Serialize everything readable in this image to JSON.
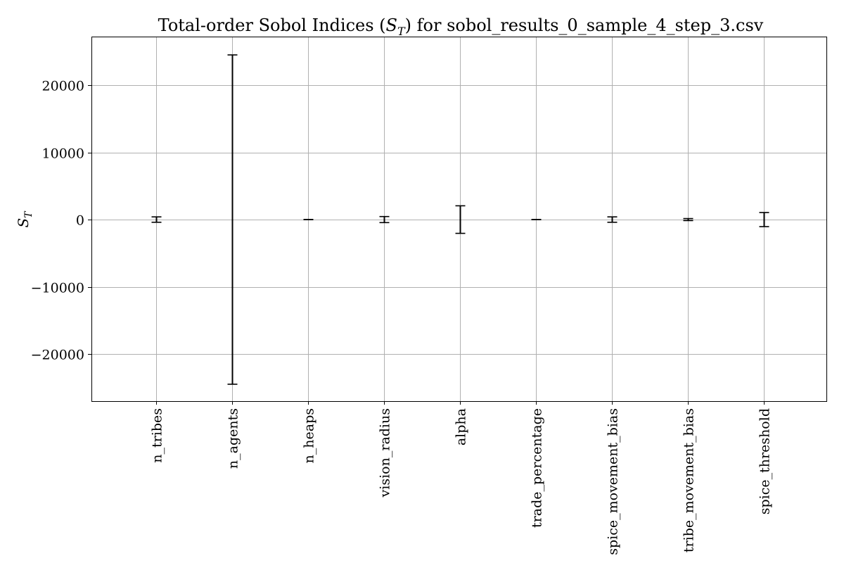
{
  "chart_data": {
    "type": "errorbar",
    "title": "Total-order Sobol Indices (S_T) for sobol_results_0_sample_4_step_3.csv",
    "title_parts": {
      "before": "Total-order Sobol Indices (",
      "symbol": "S",
      "subscript": "T",
      "after": ") for sobol_results_0_sample_4_step_3.csv"
    },
    "ylabel": {
      "symbol": "S",
      "subscript": "T"
    },
    "xlabel": "",
    "categories": [
      "n_tribes",
      "n_agents",
      "n_heaps",
      "vision_radius",
      "alpha",
      "trade_percentage",
      "spice_movement_bias",
      "tribe_movement_bias",
      "spice_threshold"
    ],
    "series": [
      {
        "values": [
          0,
          0,
          0,
          0,
          0,
          0,
          0,
          0,
          0
        ],
        "errors": [
          400,
          24500,
          10,
          450,
          2050,
          10,
          400,
          150,
          1050
        ]
      }
    ],
    "yticks": [
      -20000,
      -10000,
      0,
      10000,
      20000
    ],
    "ytick_labels": [
      "−20000",
      "−10000",
      "0",
      "10000",
      "20000"
    ],
    "ylim": [
      -27000,
      27000
    ],
    "grid": true,
    "legend": "none",
    "colors": {
      "errorbar": "#000000",
      "grid": "#b0b0b0",
      "axes": "#000000"
    }
  }
}
